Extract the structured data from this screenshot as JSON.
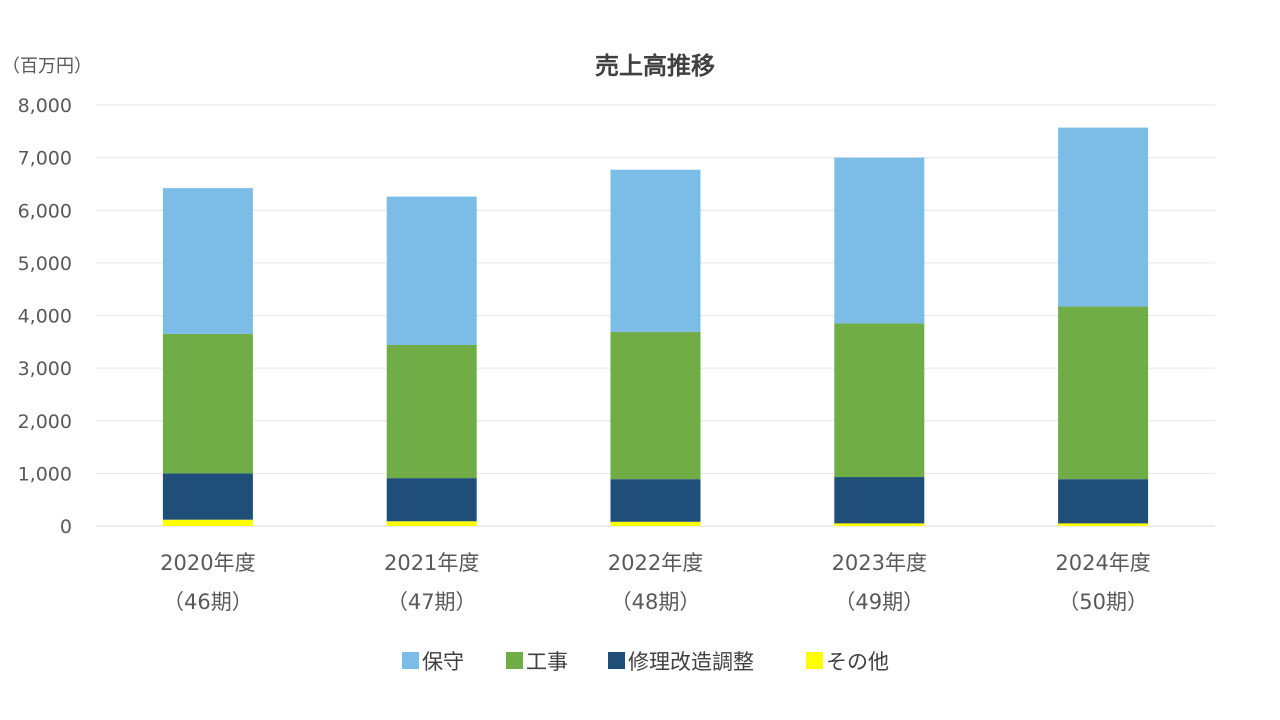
{
  "chart_data": {
    "type": "bar",
    "stacked": true,
    "title": "売上高推移",
    "unit_label": "（百万円）",
    "categories": [
      [
        "2020年度",
        "（46期）"
      ],
      [
        "2021年度",
        "（47期）"
      ],
      [
        "2022年度",
        "（48期）"
      ],
      [
        "2023年度",
        "（49期）"
      ],
      [
        "2024年度",
        "（50期）"
      ]
    ],
    "ylim": [
      0,
      8000
    ],
    "yticks": [
      "0",
      "1,000",
      "2,000",
      "3,000",
      "4,000",
      "5,000",
      "6,000",
      "7,000",
      "8,000"
    ],
    "ytick_values": [
      0,
      1000,
      2000,
      3000,
      4000,
      5000,
      6000,
      7000,
      8000
    ],
    "grid": true,
    "legend_position": "bottom",
    "series": [
      {
        "name": "その他",
        "color": "#ffff00",
        "values": [
          120,
          90,
          80,
          50,
          50
        ]
      },
      {
        "name": "修理改造調整",
        "color": "#1f4e79",
        "values": [
          880,
          820,
          810,
          880,
          840
        ]
      },
      {
        "name": "工事",
        "color": "#70ad47",
        "values": [
          2650,
          2530,
          2800,
          2920,
          3280
        ]
      },
      {
        "name": "保守",
        "color": "#7cbde8",
        "values": [
          2770,
          2820,
          3080,
          3150,
          3400
        ]
      }
    ],
    "legend_order": [
      "保守",
      "工事",
      "修理改造調整",
      "その他"
    ]
  }
}
